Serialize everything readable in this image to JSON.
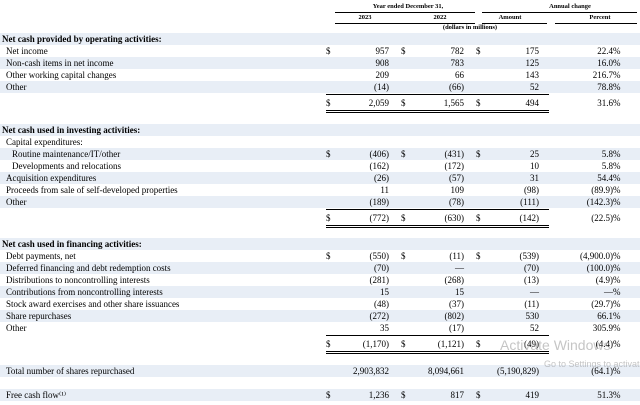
{
  "header": {
    "period": "Year ended December 31,",
    "annual_change": "Annual change",
    "year1": "2023",
    "year2": "2022",
    "amount": "Amount",
    "percent": "Percent",
    "units": "(dollars in millions)"
  },
  "operating": {
    "title": "Net cash provided by operating activities:",
    "rows": [
      {
        "label": "Net income",
        "d": "$",
        "y1": "957",
        "y2": "782",
        "amt": "175",
        "pct": "22.4",
        "pct_suffix": "%"
      },
      {
        "label": "Non-cash items in net income",
        "d": "",
        "y1": "908",
        "y2": "783",
        "amt": "125",
        "pct": "16.0",
        "pct_suffix": "%"
      },
      {
        "label": "Other working capital changes",
        "d": "",
        "y1": "209",
        "y2": "66",
        "amt": "143",
        "pct": "216.7",
        "pct_suffix": "%"
      },
      {
        "label": "Other",
        "d": "",
        "y1": "(14)",
        "y2": "(66)",
        "amt": "52",
        "pct": "78.8",
        "pct_suffix": "%"
      }
    ],
    "total": {
      "d": "$",
      "y1": "2,059",
      "y2": "1,565",
      "amt": "494",
      "pct": "31.6",
      "pct_suffix": "%"
    }
  },
  "investing": {
    "title": "Net cash used in investing activities:",
    "subtitle": "Capital expenditures:",
    "rows": [
      {
        "label": "Routine maintenance/IT/other",
        "d": "$",
        "y1": "(406)",
        "y2": "(431)",
        "amt": "25",
        "pct": "5.8",
        "pct_suffix": "%"
      },
      {
        "label": "Developments and relocations",
        "d": "",
        "y1": "(162)",
        "y2": "(172)",
        "amt": "10",
        "pct": "5.8",
        "pct_suffix": "%"
      },
      {
        "label": "Acquisition expenditures",
        "d": "",
        "y1": "(26)",
        "y2": "(57)",
        "amt": "31",
        "pct": "54.4",
        "pct_suffix": "%"
      },
      {
        "label": "Proceeds from sale of self-developed properties",
        "d": "",
        "y1": "11",
        "y2": "109",
        "amt": "(98)",
        "pct": "(89.9)",
        "pct_suffix": "%"
      },
      {
        "label": "Other",
        "d": "",
        "y1": "(189)",
        "y2": "(78)",
        "amt": "(111)",
        "pct": "(142.3)",
        "pct_suffix": "%"
      }
    ],
    "total": {
      "d": "$",
      "y1": "(772)",
      "y2": "(630)",
      "amt": "(142)",
      "pct": "(22.5)",
      "pct_suffix": "%"
    }
  },
  "financing": {
    "title": "Net cash used in financing activities:",
    "rows": [
      {
        "label": "Debt payments, net",
        "d": "$",
        "y1": "(550)",
        "y2": "(11)",
        "amt": "(539)",
        "pct": "(4,900.0)",
        "pct_suffix": "%"
      },
      {
        "label": "Deferred financing and debt redemption costs",
        "d": "",
        "y1": "(70)",
        "y2": "—",
        "amt": "(70)",
        "pct": "(100.0)",
        "pct_suffix": "%"
      },
      {
        "label": "Distributions to noncontrolling interests",
        "d": "",
        "y1": "(281)",
        "y2": "(268)",
        "amt": "(13)",
        "pct": "(4.9)",
        "pct_suffix": "%"
      },
      {
        "label": "Contributions from noncontrolling interests",
        "d": "",
        "y1": "15",
        "y2": "15",
        "amt": "—",
        "pct": "—",
        "pct_suffix": "%"
      },
      {
        "label": "Stock award exercises and other share issuances",
        "d": "",
        "y1": "(48)",
        "y2": "(37)",
        "amt": "(11)",
        "pct": "(29.7)",
        "pct_suffix": "%"
      },
      {
        "label": "Share repurchases",
        "d": "",
        "y1": "(272)",
        "y2": "(802)",
        "amt": "530",
        "pct": "66.1",
        "pct_suffix": "%"
      },
      {
        "label": "Other",
        "d": "",
        "y1": "35",
        "y2": "(17)",
        "amt": "52",
        "pct": "305.9",
        "pct_suffix": "%"
      }
    ],
    "total": {
      "d": "$",
      "y1": "(1,170)",
      "y2": "(1,121)",
      "amt": "(49)",
      "pct": "(4.4)",
      "pct_suffix": "%"
    }
  },
  "shares": {
    "label": "Total number of shares repurchased",
    "y1": "2,903,832",
    "y2": "8,094,661",
    "amt": "(5,190,829)",
    "pct": "(64.1)",
    "pct_suffix": "%"
  },
  "free_cash_flow": {
    "label": "Free cash flow⁽¹⁾",
    "d": "$",
    "y1": "1,236",
    "y2": "817",
    "amt": "419",
    "pct": "51.3",
    "pct_suffix": "%"
  },
  "watermark": {
    "line1": "Activate Windows",
    "line2": "Go to Settings to activate"
  }
}
